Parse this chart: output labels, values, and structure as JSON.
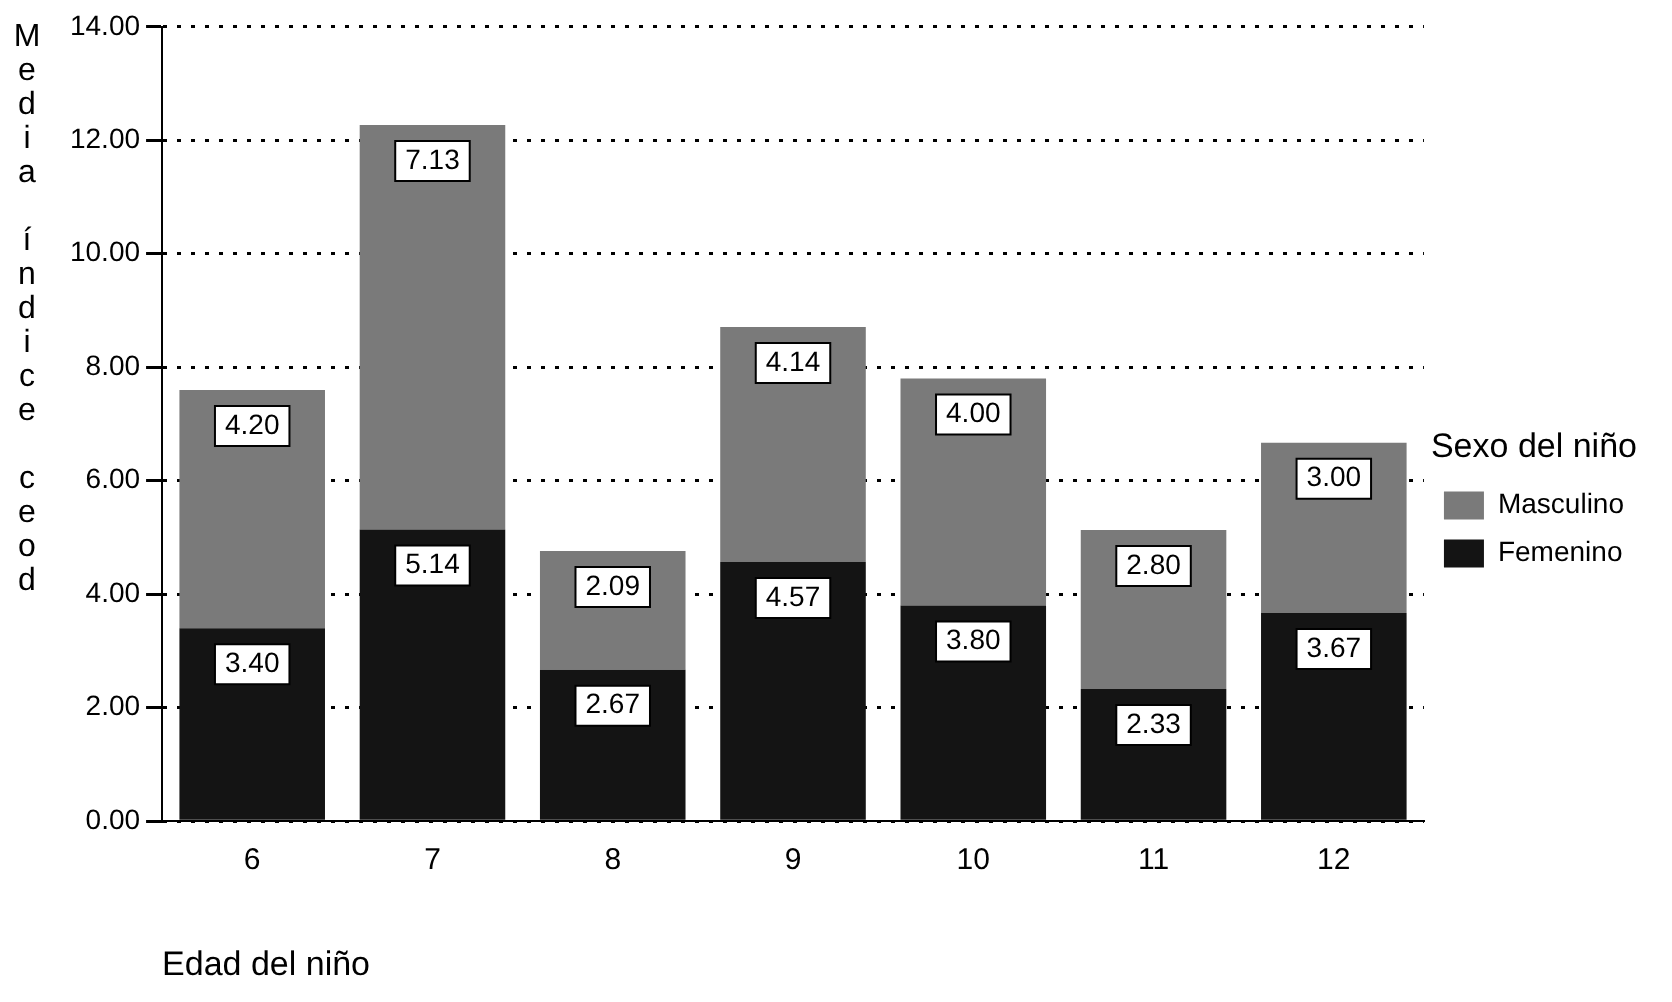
{
  "chart_data": {
    "type": "bar",
    "stacked": true,
    "xlabel": "Edad del niño",
    "ylabel": "Media índice ceod",
    "legend_title": "Sexo del niño",
    "categories": [
      "6",
      "7",
      "8",
      "9",
      "10",
      "11",
      "12"
    ],
    "series": [
      {
        "name": "Femenino",
        "color": "#141414",
        "values": [
          3.4,
          5.14,
          2.67,
          4.57,
          3.8,
          2.33,
          3.67
        ],
        "value_labels": [
          "3.40",
          "5.14",
          "2.67",
          "4.57",
          "3.80",
          "2.33",
          "3.67"
        ]
      },
      {
        "name": "Masculino",
        "color": "#7a7a7a",
        "values": [
          4.2,
          7.13,
          2.09,
          4.14,
          4.0,
          2.8,
          3.0
        ],
        "value_labels": [
          "4.20",
          "7.13",
          "2.09",
          "4.14",
          "4.00",
          "2.80",
          "3.00"
        ]
      }
    ],
    "ylim": [
      0,
      14
    ],
    "yticks": [
      {
        "value": 0,
        "label": "0.00"
      },
      {
        "value": 2,
        "label": "2.00"
      },
      {
        "value": 4,
        "label": "4.00"
      },
      {
        "value": 6,
        "label": "6.00"
      },
      {
        "value": 8,
        "label": "8.00"
      },
      {
        "value": 10,
        "label": "10.00"
      },
      {
        "value": 12,
        "label": "12.00"
      },
      {
        "value": 14,
        "label": "14.00"
      }
    ],
    "grid": "y",
    "legend": "right"
  }
}
